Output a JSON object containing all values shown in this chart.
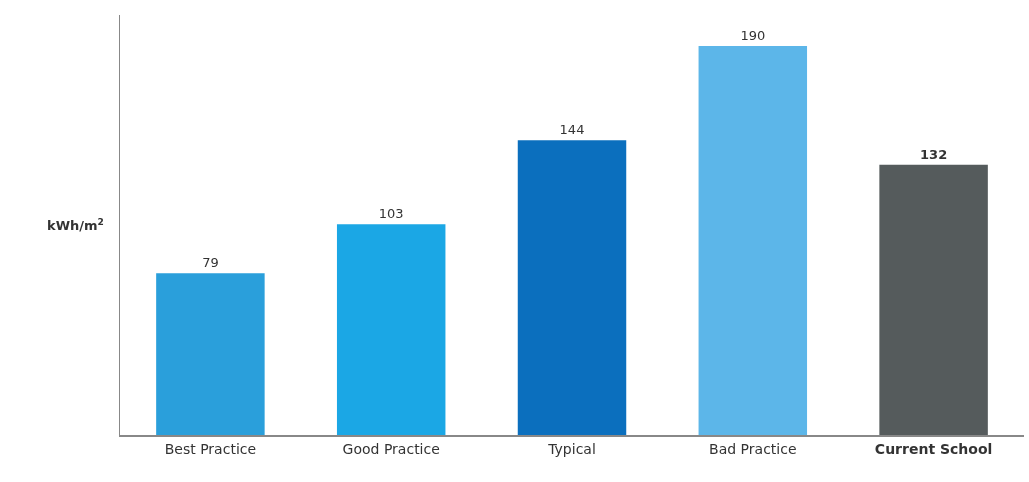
{
  "chart_data": {
    "type": "bar",
    "ylabel": "kWh/m$^{2}$",
    "categories": [
      "Best Practice",
      "Good Practice",
      "Typical",
      "Bad Practice",
      "Current School"
    ],
    "values": [
      79,
      103,
      144,
      190,
      132
    ],
    "colors": [
      "#2a9fdb",
      "#1ba7e5",
      "#0b6fbe",
      "#5cb6e9",
      "#555b5c"
    ],
    "data_labels": true
  }
}
